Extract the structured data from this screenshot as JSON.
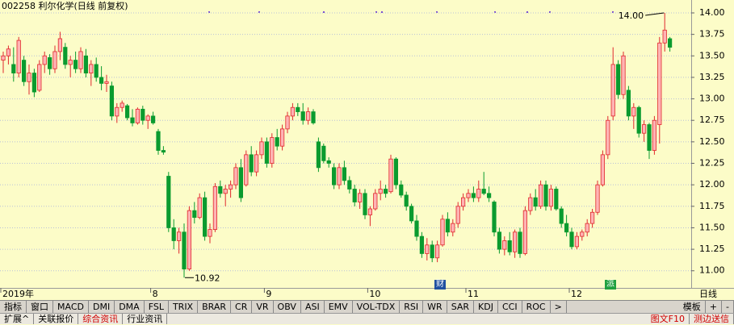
{
  "chart_data": {
    "type": "candlestick",
    "title": "002258 利尔化学(日线 前复权)",
    "period_label": "日线",
    "up_color": "#e0282d",
    "down_color": "#0a9b2f",
    "categories": [
      "2019年",
      null,
      null,
      null,
      null,
      null,
      null,
      null,
      null,
      null,
      null,
      null,
      null,
      null,
      null,
      null,
      null,
      null,
      null,
      null,
      null,
      null,
      null,
      null,
      null,
      null,
      null,
      null,
      null,
      "8",
      null,
      null,
      null,
      null,
      null,
      null,
      null,
      null,
      null,
      null,
      null,
      null,
      null,
      null,
      null,
      null,
      null,
      null,
      null,
      null,
      null,
      "9",
      null,
      null,
      null,
      null,
      null,
      null,
      null,
      null,
      null,
      null,
      null,
      null,
      null,
      null,
      null,
      null,
      null,
      null,
      null,
      "10",
      null,
      null,
      null,
      null,
      null,
      null,
      null,
      null,
      null,
      null,
      null,
      null,
      null,
      null,
      null,
      null,
      null,
      null,
      "11",
      null,
      null,
      null,
      null,
      null,
      null,
      null,
      null,
      null,
      null,
      null,
      null,
      null,
      null,
      null,
      null,
      null,
      null,
      null,
      "12",
      null,
      null,
      null,
      null,
      null,
      null,
      null,
      null,
      null,
      null,
      null,
      null,
      null,
      null,
      null,
      null,
      null,
      null,
      null
    ],
    "open": [
      13.45,
      13.5,
      13.4,
      13.3,
      13.45,
      13.2,
      13.3,
      13.1,
      13.4,
      13.48,
      13.35,
      13.55,
      13.6,
      13.4,
      13.45,
      13.35,
      13.5,
      13.3,
      13.4,
      13.25,
      13.18,
      13.15,
      12.8,
      12.9,
      12.92,
      12.78,
      12.72,
      12.88,
      12.75,
      12.8,
      12.62,
      12.4,
      12.1,
      11.5,
      11.35,
      11.45,
      11.02,
      11.7,
      11.62,
      11.85,
      11.4,
      11.48,
      11.98,
      11.9,
      11.95,
      12.0,
      12.2,
      12.0,
      12.35,
      12.15,
      12.35,
      12.5,
      12.25,
      12.55,
      12.45,
      12.65,
      12.8,
      12.9,
      12.85,
      12.75,
      12.85,
      12.5,
      12.45,
      12.28,
      12.2,
      12.0,
      12.2,
      12.05,
      11.95,
      11.8,
      11.9,
      11.65,
      11.72,
      11.9,
      11.95,
      11.92,
      12.3,
      12.0,
      11.88,
      11.75,
      11.58,
      11.4,
      11.2,
      11.3,
      11.15,
      11.3,
      11.6,
      11.45,
      11.55,
      11.75,
      11.85,
      11.9,
      11.85,
      11.95,
      11.9,
      11.8,
      11.45,
      11.25,
      11.35,
      11.22,
      11.45,
      11.2,
      11.7,
      11.85,
      11.75,
      12.0,
      11.75,
      11.95,
      11.72,
      11.55,
      11.45,
      11.28,
      11.4,
      11.45,
      11.55,
      11.68,
      12.0,
      12.35,
      12.8,
      13.4,
      13.05,
      13.1,
      12.8,
      12.9,
      12.6,
      12.7,
      12.4,
      12.7,
      13.65,
      13.7
    ],
    "high": [
      13.55,
      13.62,
      13.6,
      13.72,
      13.5,
      13.4,
      13.35,
      13.45,
      13.55,
      13.52,
      13.62,
      13.78,
      13.65,
      13.5,
      13.55,
      13.6,
      13.58,
      13.45,
      13.48,
      13.38,
      13.28,
      13.2,
      12.95,
      12.98,
      12.94,
      12.88,
      12.9,
      12.92,
      12.82,
      12.85,
      12.65,
      12.45,
      12.15,
      11.6,
      11.5,
      11.55,
      11.75,
      11.8,
      11.9,
      11.92,
      11.55,
      12.02,
      12.05,
      12.0,
      12.05,
      12.25,
      12.3,
      12.4,
      12.45,
      12.4,
      12.55,
      12.55,
      12.6,
      12.65,
      12.7,
      12.85,
      12.95,
      12.95,
      12.95,
      12.9,
      12.88,
      12.55,
      12.48,
      12.32,
      12.25,
      12.25,
      12.28,
      12.1,
      12.0,
      11.95,
      11.95,
      11.75,
      11.95,
      12.05,
      12.0,
      12.35,
      12.32,
      12.05,
      11.92,
      11.78,
      11.65,
      11.45,
      11.38,
      11.35,
      11.35,
      11.65,
      11.68,
      11.6,
      11.8,
      11.9,
      11.95,
      11.98,
      12.05,
      12.15,
      11.98,
      11.82,
      11.5,
      11.4,
      11.45,
      11.48,
      11.5,
      11.75,
      11.9,
      11.95,
      12.05,
      12.05,
      12.0,
      11.98,
      11.75,
      11.65,
      11.5,
      11.45,
      11.48,
      11.6,
      11.72,
      12.05,
      12.4,
      12.8,
      13.6,
      13.45,
      13.55,
      13.15,
      12.95,
      12.92,
      12.75,
      12.72,
      12.8,
      13.72,
      14.0,
      13.72
    ],
    "low": [
      13.3,
      13.4,
      13.2,
      13.25,
      13.15,
      13.05,
      13.02,
      13.08,
      13.3,
      13.28,
      13.3,
      13.45,
      13.35,
      13.25,
      13.3,
      13.3,
      13.25,
      13.15,
      13.2,
      13.1,
      13.08,
      12.75,
      12.72,
      12.85,
      12.75,
      12.68,
      12.7,
      12.7,
      12.65,
      12.7,
      12.35,
      12.35,
      11.45,
      11.25,
      11.2,
      10.92,
      11.0,
      11.55,
      11.6,
      11.35,
      11.32,
      11.45,
      11.85,
      11.75,
      11.85,
      11.95,
      11.8,
      11.98,
      12.1,
      12.1,
      12.3,
      12.2,
      12.2,
      12.4,
      12.4,
      12.6,
      12.75,
      12.8,
      12.7,
      12.7,
      12.7,
      12.15,
      12.25,
      12.2,
      11.95,
      11.95,
      12.0,
      11.9,
      11.75,
      11.72,
      11.6,
      11.52,
      11.7,
      11.82,
      11.85,
      11.9,
      11.95,
      11.85,
      11.7,
      11.55,
      11.35,
      11.15,
      11.12,
      11.1,
      11.1,
      11.28,
      11.4,
      11.4,
      11.5,
      11.7,
      11.8,
      11.8,
      11.8,
      11.88,
      11.8,
      11.4,
      11.2,
      11.18,
      11.18,
      11.15,
      11.15,
      11.18,
      11.65,
      11.7,
      11.72,
      11.7,
      11.7,
      11.7,
      11.5,
      11.4,
      11.25,
      11.25,
      11.35,
      11.4,
      11.5,
      11.65,
      11.98,
      12.3,
      12.75,
      13.0,
      13.0,
      12.75,
      12.65,
      12.55,
      12.5,
      12.3,
      12.35,
      12.48,
      13.55,
      13.55
    ],
    "close": [
      13.5,
      13.58,
      13.3,
      13.68,
      13.2,
      13.3,
      13.08,
      13.4,
      13.5,
      13.35,
      13.55,
      13.7,
      13.4,
      13.45,
      13.35,
      13.55,
      13.3,
      13.4,
      13.25,
      13.18,
      13.2,
      12.8,
      12.9,
      12.95,
      12.78,
      12.72,
      12.88,
      12.75,
      12.8,
      12.72,
      12.4,
      12.38,
      11.5,
      11.35,
      11.45,
      11.02,
      11.7,
      11.62,
      11.85,
      11.4,
      11.48,
      11.98,
      11.9,
      11.95,
      12.0,
      12.2,
      11.85,
      12.35,
      12.15,
      12.35,
      12.5,
      12.25,
      12.55,
      12.45,
      12.65,
      12.8,
      12.9,
      12.85,
      12.75,
      12.85,
      12.72,
      12.2,
      12.28,
      12.25,
      12.0,
      12.2,
      12.05,
      11.95,
      11.8,
      11.9,
      11.65,
      11.72,
      11.9,
      11.95,
      11.9,
      12.3,
      12.0,
      11.88,
      11.75,
      11.58,
      11.4,
      11.2,
      11.3,
      11.15,
      11.3,
      11.6,
      11.45,
      11.55,
      11.75,
      11.85,
      11.9,
      11.85,
      11.95,
      11.9,
      11.85,
      11.45,
      11.25,
      11.35,
      11.22,
      11.45,
      11.2,
      11.7,
      11.85,
      11.75,
      12.0,
      11.75,
      11.95,
      11.72,
      11.55,
      11.45,
      11.28,
      11.4,
      11.45,
      11.55,
      11.68,
      12.0,
      12.35,
      12.75,
      13.4,
      13.05,
      13.5,
      12.8,
      12.9,
      12.6,
      12.7,
      12.4,
      12.75,
      13.65,
      13.8,
      13.6
    ],
    "ylim": [
      10.81,
      14.15
    ],
    "yticks": [
      {
        "value": 11,
        "label": "11.00"
      },
      {
        "value": 11.25,
        "label": "11.25"
      },
      {
        "value": 11.5,
        "label": "11.50"
      },
      {
        "value": 11.75,
        "label": "11.75"
      },
      {
        "value": 12,
        "label": "12.00"
      },
      {
        "value": 12.25,
        "label": "12.25"
      },
      {
        "value": 12.5,
        "label": "12.50"
      },
      {
        "value": 12.75,
        "label": "12.75"
      },
      {
        "value": 13,
        "label": "13.00"
      },
      {
        "value": 13.25,
        "label": "13.25"
      },
      {
        "value": 13.5,
        "label": "13.50"
      },
      {
        "value": 13.75,
        "label": "13.75"
      },
      {
        "value": 14,
        "label": "14.00"
      }
    ],
    "grid": true,
    "annotations": [
      {
        "value": 14,
        "label": "14.00",
        "side": "left"
      },
      {
        "value": 10.92,
        "label": "10.92",
        "side": "right"
      }
    ],
    "events": [
      "财",
      "派"
    ]
  },
  "toolbar": {
    "indicator_tabs": [
      "指标",
      "窗口",
      "MACD",
      "DMI",
      "DMA",
      "FSL",
      "TRIX",
      "BRAR",
      "CR",
      "VR",
      "OBV",
      "ASI",
      "EMV",
      "VOL-TDX",
      "RSI",
      "WR",
      "SAR",
      "KDJ",
      "CCI",
      "ROC",
      ">"
    ],
    "right_tabs": [
      "模板",
      "+",
      "-"
    ],
    "info_tabs": [
      "扩展^",
      "关联报价",
      "综合资讯",
      "行业资讯"
    ],
    "info_right_tabs": [
      "图文F10",
      "测边送信"
    ]
  }
}
